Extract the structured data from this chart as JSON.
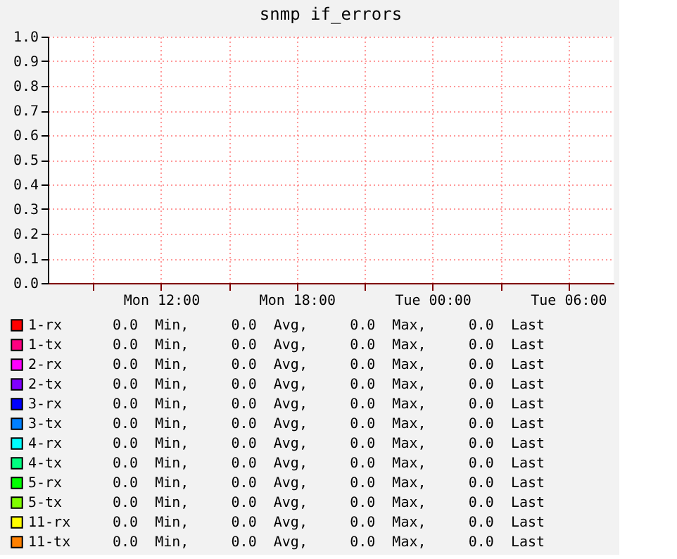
{
  "chart_data": {
    "type": "line",
    "title": "snmp if_errors",
    "categories": [
      null,
      "Mon 12:00",
      null,
      "Mon 18:00",
      null,
      "Tue 00:00",
      null,
      "Tue 06:00"
    ],
    "ylim": [
      0,
      1
    ],
    "yticks": [
      {
        "value": 0,
        "label": "0.0"
      },
      0.1,
      0.2,
      0.3,
      0.4,
      0.5,
      0.6,
      0.7,
      0.8,
      0.9,
      {
        "value": 1,
        "label": "1.0"
      }
    ],
    "grid": true,
    "legend": "bottom",
    "series": [
      {
        "name": "1-rx",
        "color": "#ff0000",
        "values": [
          null,
          null,
          null,
          null,
          null,
          null,
          null,
          null
        ]
      },
      {
        "name": "1-tx",
        "color": "#ff0080",
        "values": [
          null,
          null,
          null,
          null,
          null,
          null,
          null,
          null
        ]
      },
      {
        "name": "2-rx",
        "color": "#ff00ff",
        "values": [
          null,
          null,
          null,
          null,
          null,
          null,
          null,
          null
        ]
      },
      {
        "name": "2-tx",
        "color": "#8000ff",
        "values": [
          null,
          null,
          null,
          null,
          null,
          null,
          null,
          null
        ]
      },
      {
        "name": "3-rx",
        "color": "#0000ff",
        "values": [
          null,
          null,
          null,
          null,
          null,
          null,
          null,
          null
        ]
      },
      {
        "name": "3-tx",
        "color": "#0080ff",
        "values": [
          null,
          null,
          null,
          null,
          null,
          null,
          null,
          null
        ]
      },
      {
        "name": "4-rx",
        "color": "#00ffff",
        "values": [
          null,
          null,
          null,
          null,
          null,
          null,
          null,
          null
        ]
      },
      {
        "name": "4-tx",
        "color": "#00ff80",
        "values": [
          null,
          null,
          null,
          null,
          null,
          null,
          null,
          null
        ]
      },
      {
        "name": "5-rx",
        "color": "#00ff00",
        "values": [
          null,
          null,
          null,
          null,
          null,
          null,
          null,
          null
        ]
      },
      {
        "name": "5-tx",
        "color": "#80ff00",
        "values": [
          null,
          null,
          null,
          null,
          null,
          null,
          null,
          null
        ]
      },
      {
        "name": "11-rx",
        "color": "#ffff00",
        "values": [
          null,
          null,
          null,
          null,
          null,
          null,
          null,
          null
        ]
      },
      {
        "name": "11-tx",
        "color": "#ff8000",
        "values": [
          null,
          null,
          null,
          null,
          null,
          null,
          null,
          null
        ]
      }
    ],
    "annotations": [
      "0.0  Min,     0.0  Avg,     0.0  Max,     0.0  Last",
      "0.0  Min,     0.0  Avg,     0.0  Max,     0.0  Last",
      "0.0  Min,     0.0  Avg,     0.0  Max,     0.0  Last",
      "0.0  Min,     0.0  Avg,     0.0  Max,     0.0  Last",
      "0.0  Min,     0.0  Avg,     0.0  Max,     0.0  Last",
      "0.0  Min,     0.0  Avg,     0.0  Max,     0.0  Last",
      "0.0  Min,     0.0  Avg,     0.0  Max,     0.0  Last",
      "0.0  Min,     0.0  Avg,     0.0  Max,     0.0  Last",
      "0.0  Min,     0.0  Avg,     0.0  Max,     0.0  Last",
      "0.0  Min,     0.0  Avg,     0.0  Max,     0.0  Last",
      "0.0  Min,     0.0  Avg,     0.0  Max,     0.0  Last",
      "0.0  Min,     0.0  Avg,     0.0  Max,     0.0  Last"
    ]
  }
}
